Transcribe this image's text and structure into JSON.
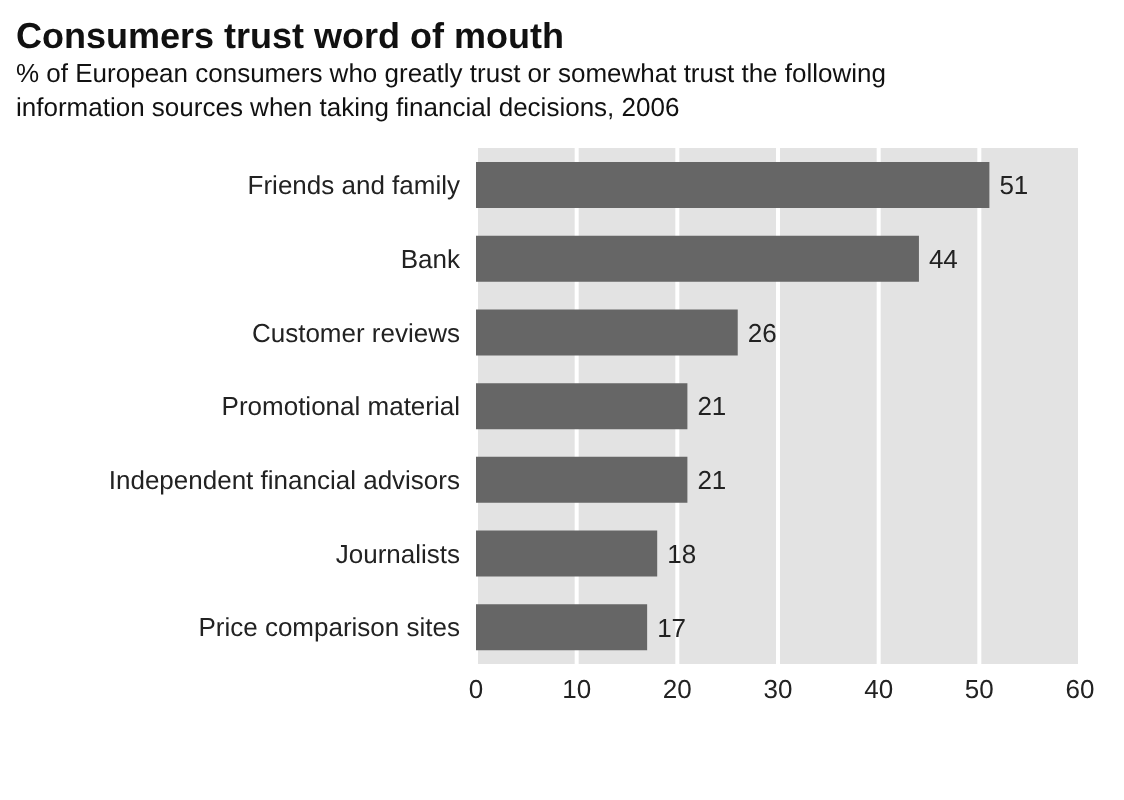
{
  "chart_data": {
    "type": "bar",
    "orientation": "horizontal",
    "title": "Consumers trust word of mouth",
    "subtitle": "% of European consumers who greatly trust or somewhat trust the following information sources when taking financial decisions, 2006",
    "categories": [
      "Friends and family",
      "Bank",
      "Customer reviews",
      "Promotional material",
      "Independent financial advisors",
      "Journalists",
      "Price comparison sites"
    ],
    "values": [
      51,
      44,
      26,
      21,
      21,
      18,
      17
    ],
    "color": "#666666",
    "data_labels": true,
    "xlim": [
      0,
      60
    ],
    "xticks": [
      0,
      10,
      20,
      30,
      40,
      50,
      60
    ],
    "grid": "x"
  }
}
